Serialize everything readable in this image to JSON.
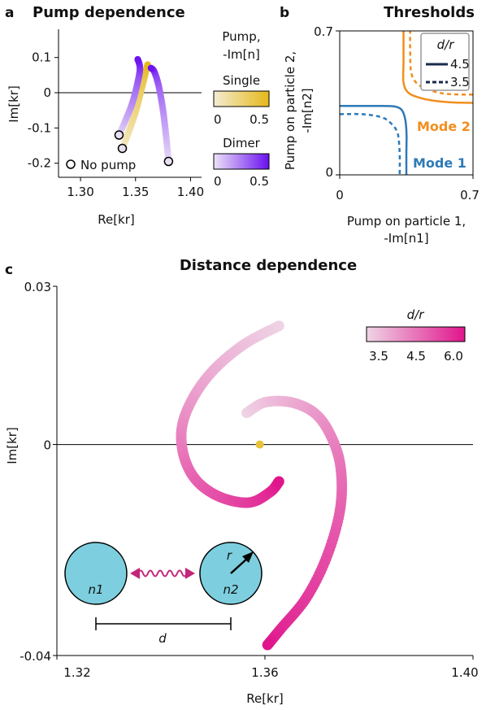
{
  "chart_data": [
    {
      "panel": "a",
      "type": "line",
      "title": "Pump dependence",
      "xlabel": "Re[kr]",
      "ylabel": "Im[kr]",
      "xlim": [
        1.28,
        1.41
      ],
      "ylim": [
        -0.24,
        0.18
      ],
      "xticks": [
        "1.30",
        "1.35",
        "1.40"
      ],
      "xtick_values": [
        1.3,
        1.35,
        1.4
      ],
      "yticks": [
        "0.1",
        "0",
        "-0.1",
        "-0.2"
      ],
      "ytick_values": [
        0.1,
        0,
        -0.1,
        -0.2
      ],
      "hline_y": 0,
      "series": [
        {
          "name": "Single",
          "colormap": "yellow",
          "x": [
            1.338,
            1.343,
            1.35,
            1.355,
            1.359,
            1.361
          ],
          "y": [
            -0.158,
            -0.118,
            -0.055,
            0.005,
            0.055,
            0.08
          ]
        },
        {
          "name": "Dimer",
          "colormap": "purple",
          "x": [
            1.335,
            1.34,
            1.347,
            1.352,
            1.354,
            1.352
          ],
          "y": [
            -0.12,
            -0.085,
            -0.03,
            0.03,
            0.07,
            0.095
          ]
        },
        {
          "name": "Dimer",
          "colormap": "purple",
          "x": [
            1.38,
            1.378,
            1.375,
            1.371,
            1.367,
            1.364
          ],
          "y": [
            -0.195,
            -0.13,
            -0.05,
            0.02,
            0.06,
            0.07
          ]
        }
      ],
      "open_markers": [
        {
          "x": 1.335,
          "y": -0.12
        },
        {
          "x": 1.338,
          "y": -0.158
        },
        {
          "x": 1.38,
          "y": -0.195
        }
      ],
      "legend_marker_label": "No pump",
      "colorbar_title": "Pump,\n-Im[n]",
      "colorbars": [
        {
          "name": "Single",
          "ticks": [
            "0",
            "0.5"
          ],
          "colors": [
            "#f4ecd2",
            "#e6b81a"
          ]
        },
        {
          "name": "Dimer",
          "ticks": [
            "0",
            "0.5"
          ],
          "colors": [
            "#ece3f7",
            "#6a0ff0"
          ]
        }
      ]
    },
    {
      "panel": "b",
      "type": "line",
      "title": "Thresholds",
      "xlabel": "Pump on particle 1,\n-Im[n1]",
      "ylabel": "Pump on  particle 2,\n-Im[n2]",
      "xlim": [
        0,
        0.7
      ],
      "ylim": [
        0,
        0.7
      ],
      "xticks": [
        "0",
        "0.7"
      ],
      "yticks": [
        "0",
        "0.7"
      ],
      "legend_title": "d/r",
      "legend": [
        {
          "label": "4.5",
          "style": "solid"
        },
        {
          "label": "3.5",
          "style": "dashed"
        }
      ],
      "mode_labels": [
        {
          "label": "Mode 2",
          "color": "#f28e1e"
        },
        {
          "label": "Mode 1",
          "color": "#2e7ab8"
        }
      ],
      "series": [
        {
          "name": "Mode 2, 4.5",
          "color": "#f28e1e",
          "style": "solid",
          "x": [
            0.7,
            0.6,
            0.5,
            0.42,
            0.36,
            0.335,
            0.335,
            0.335
          ],
          "y": [
            0.35,
            0.352,
            0.36,
            0.375,
            0.4,
            0.45,
            0.55,
            0.7
          ]
        },
        {
          "name": "Mode 1, 4.5",
          "color": "#2e7ab8",
          "style": "solid",
          "x": [
            0.0,
            0.1,
            0.22,
            0.3,
            0.335,
            0.35,
            0.35,
            0.35
          ],
          "y": [
            0.335,
            0.335,
            0.335,
            0.33,
            0.3,
            0.22,
            0.1,
            0.0
          ]
        },
        {
          "name": "Mode 2, 3.5",
          "color": "#f28e1e",
          "style": "dashed",
          "x": [
            0.7,
            0.55,
            0.45,
            0.4,
            0.375,
            0.37,
            0.37
          ],
          "y": [
            0.39,
            0.395,
            0.42,
            0.45,
            0.5,
            0.6,
            0.7
          ]
        },
        {
          "name": "Mode 1, 3.5",
          "color": "#2e7ab8",
          "style": "dashed",
          "x": [
            0.0,
            0.12,
            0.22,
            0.27,
            0.305,
            0.315,
            0.315
          ],
          "y": [
            0.295,
            0.295,
            0.28,
            0.25,
            0.2,
            0.1,
            0.0
          ]
        }
      ]
    },
    {
      "panel": "c",
      "type": "scatter",
      "title": "Distance dependence",
      "xlabel": "Re[kr]",
      "ylabel": "Im[kr]",
      "xlim": [
        1.32,
        1.4
      ],
      "ylim": [
        -0.04,
        0.03
      ],
      "xticks": [
        "1.32",
        "1.36",
        "1.40"
      ],
      "xtick_values": [
        1.32,
        1.36,
        1.4
      ],
      "yticks": [
        "0.03",
        "0",
        "-0.04"
      ],
      "ytick_values": [
        0.03,
        0,
        -0.04
      ],
      "hline_y": 0,
      "colorbar_title": "d/r",
      "colorbar_ticks": [
        "3.5",
        "4.5",
        "6.0"
      ],
      "colorbar_colors": [
        "#efd5e6",
        "#e0158c"
      ],
      "single_point": {
        "x": 1.359,
        "y": 0.0,
        "color": "#e8c238"
      },
      "series": [
        {
          "name": "branch-1",
          "x": [
            1.3627,
            1.356,
            1.35,
            1.346,
            1.344,
            1.3445,
            1.347,
            1.3515,
            1.357,
            1.361,
            1.3627
          ],
          "y": [
            0.0225,
            0.019,
            0.014,
            0.0085,
            0.003,
            -0.0025,
            -0.007,
            -0.01,
            -0.011,
            -0.009,
            -0.007
          ]
        },
        {
          "name": "branch-2",
          "x": [
            1.3565,
            1.36,
            1.365,
            1.3695,
            1.3725,
            1.3745,
            1.3745,
            1.372,
            1.368,
            1.363,
            1.3605
          ],
          "y": [
            0.006,
            0.008,
            0.008,
            0.006,
            0.002,
            -0.004,
            -0.012,
            -0.021,
            -0.029,
            -0.035,
            -0.038
          ]
        }
      ],
      "inset": {
        "label_n1": "n1",
        "label_n2": "n2",
        "label_r": "r",
        "label_d": "d"
      }
    }
  ],
  "labels": {
    "a": "a",
    "b": "b",
    "c": "c",
    "a_title": "Pump dependence",
    "b_title": "Thresholds",
    "c_title": "Distance dependence"
  }
}
